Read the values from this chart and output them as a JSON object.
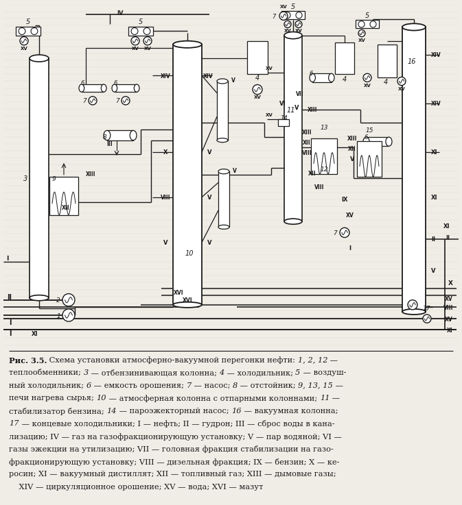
{
  "bg_color": "#f0ede6",
  "line_color": "#1a1a1a",
  "text_color": "#1a1a1a",
  "fig_width": 6.63,
  "fig_height": 7.25,
  "dpi": 100
}
